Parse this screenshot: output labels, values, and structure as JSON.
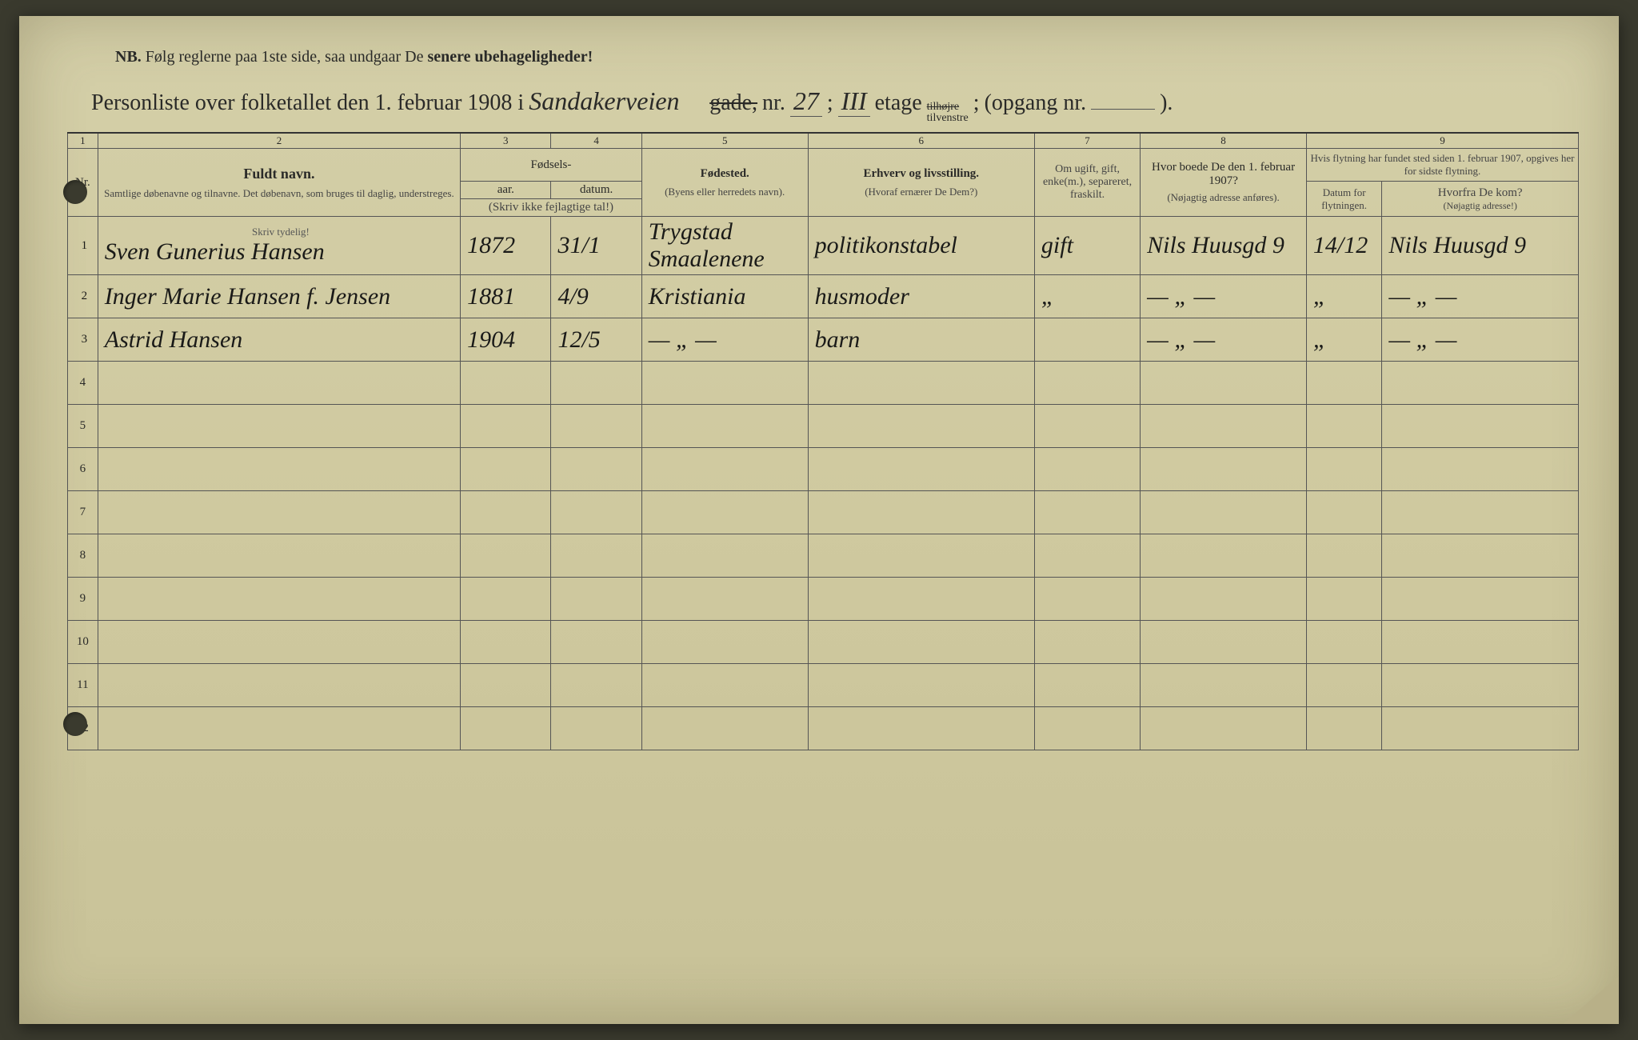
{
  "nb_prefix": "NB.",
  "nb_text1": "Følg reglerne paa 1ste side, saa undgaar De ",
  "nb_text2": "senere ubehageligheder!",
  "title_prefix": "Personliste over folketallet den 1. februar 1908 i",
  "street_handwritten": "Sandakerveien",
  "gade_label": "gade,",
  "nr_label": "nr.",
  "nr_value": "27",
  "semicolon1": ";",
  "etage_value": "III",
  "etage_label": "etage",
  "tilhoire": "tilhøjre",
  "tilvenstre": "tilvenstre",
  "semicolon2": ";",
  "opgang_label": "(opgang nr.",
  "opgang_close": ").",
  "colnums": [
    "1",
    "2",
    "3",
    "4",
    "5",
    "6",
    "7",
    "8",
    "9"
  ],
  "headers": {
    "nr": "Nr.",
    "name_main": "Fuldt navn.",
    "name_sub": "Samtlige døbenavne og tilnavne. Det døbenavn, som bruges til daglig, understreges.",
    "fodsels": "Fødsels-",
    "aar": "aar.",
    "datum": "datum.",
    "skriv_ikke": "(Skriv ikke fejlagtige tal!)",
    "fodested": "Fødested.",
    "fodested_sub": "(Byens eller herredets navn).",
    "erhverv": "Erhverv og livsstilling.",
    "erhverv_sub": "(Hvoraf ernærer De Dem?)",
    "status": "Om ugift, gift, enke(m.), separeret, fraskilt.",
    "prev_main": "Hvor boede De den 1. februar 1907?",
    "prev_sub": "(Nøjagtig adresse anføres).",
    "moved_main": "Hvis flytning har fundet sted siden 1. februar 1907, opgives her for sidste flytning.",
    "moved_date": "Datum for flytningen.",
    "moved_from": "Hvorfra De kom?",
    "moved_from_sub": "(Nøjagtig adresse!)",
    "skriv_tydeligt": "Skriv tydelig!"
  },
  "rows": [
    {
      "nr": "1",
      "name": "Sven Gunerius Hansen",
      "year": "1872",
      "date": "31/1",
      "birthplace": "Trygstad Smaalenene",
      "occupation": "politikonstabel",
      "status": "gift",
      "prev": "Nils Huusgd 9",
      "moved_date": "14/12",
      "moved_from": "Nils Huusgd 9"
    },
    {
      "nr": "2",
      "name": "Inger Marie Hansen f. Jensen",
      "year": "1881",
      "date": "4/9",
      "birthplace": "Kristiania",
      "occupation": "husmoder",
      "status": "„",
      "prev": "— „ —",
      "moved_date": "„",
      "moved_from": "— „ —"
    },
    {
      "nr": "3",
      "name": "Astrid Hansen",
      "year": "1904",
      "date": "12/5",
      "birthplace": "— „ —",
      "occupation": "barn",
      "status": "",
      "prev": "— „ —",
      "moved_date": "„",
      "moved_from": "— „ —"
    }
  ],
  "empty_row_labels": [
    "4",
    "5",
    "6",
    "7",
    "8",
    "9",
    "10",
    "11",
    "12"
  ]
}
